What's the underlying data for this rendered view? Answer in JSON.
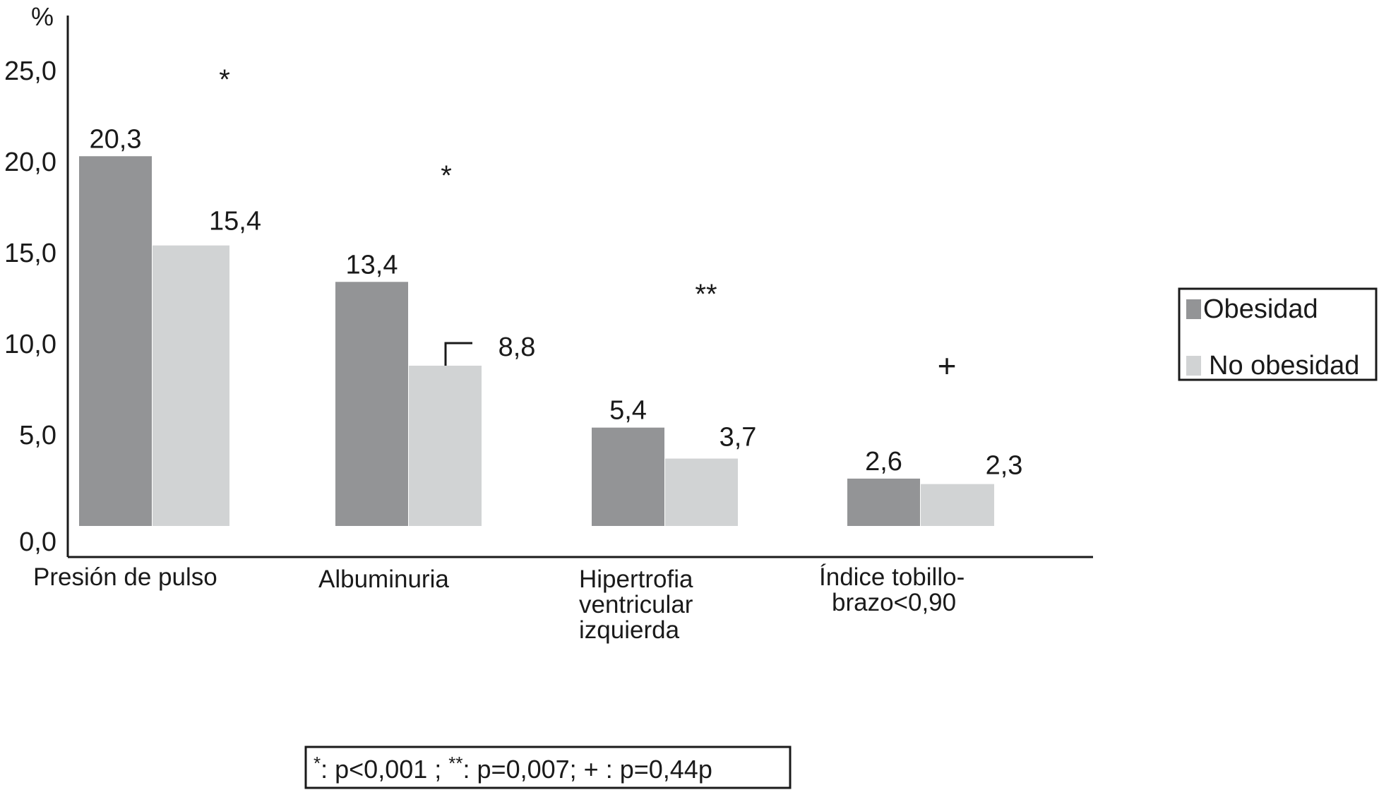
{
  "chart_data": {
    "type": "bar",
    "title": "",
    "xlabel": "",
    "ylabel": "%",
    "ylim": [
      0,
      25
    ],
    "yticks": [
      "0,0",
      "5,0",
      "10,0",
      "15,0",
      "20,0",
      "25,0"
    ],
    "categories": [
      [
        "Presión de pulso"
      ],
      [
        "Albuminuria"
      ],
      [
        "Hipertrofia",
        "ventricular",
        "izquierda"
      ],
      [
        "Índice tobillo-",
        "brazo<0,90"
      ]
    ],
    "series": [
      {
        "name": "Obesidad",
        "values": [
          20.3,
          13.4,
          5.4,
          2.6
        ],
        "labels": [
          "20,3",
          "13,4",
          "5,4",
          "2,6"
        ],
        "color": "#939496"
      },
      {
        "name": "No obesidad",
        "values": [
          15.4,
          8.8,
          3.7,
          2.3
        ],
        "labels": [
          "15,4",
          "8,8",
          "3,7",
          "2,3"
        ],
        "color": "#d1d3d4"
      }
    ],
    "significance": [
      "*",
      "*",
      "**",
      "+"
    ],
    "legend": {
      "position": "right",
      "entries": [
        "Obesidad",
        "No obesidad"
      ]
    },
    "footnote": [
      {
        "sup": "*",
        "text": ": p<0,001 ; "
      },
      {
        "sup": "**",
        "text": ": p=0,007; + : p=0,44p"
      }
    ],
    "grid": false
  }
}
